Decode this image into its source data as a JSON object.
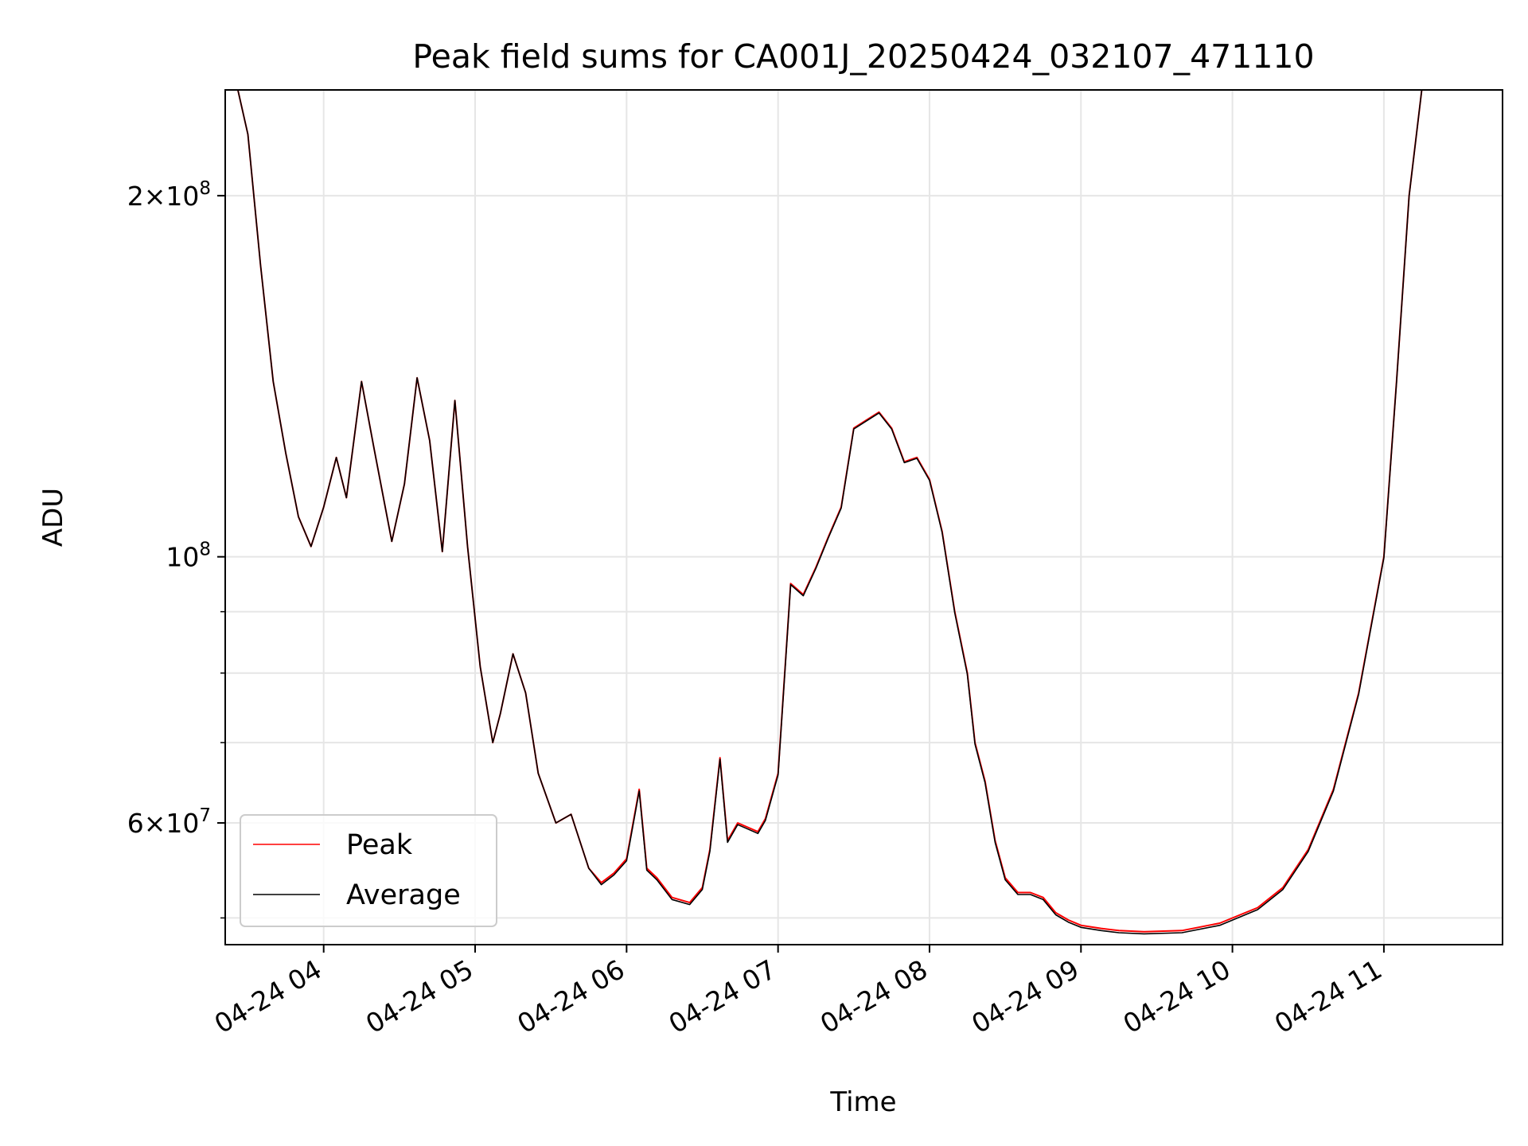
{
  "chart_data": {
    "type": "line",
    "title": "Peak field sums for CA001J_20250424_032107_471110",
    "xlabel": "Time",
    "ylabel": "ADU",
    "y_scale": "log",
    "grid": true,
    "legend": "lower-left",
    "xlim": [
      "2025-04-24 03:21",
      "2025-04-24 11:47"
    ],
    "ylim": [
      47500000,
      245000000
    ],
    "x_ticks": [
      "04-24 04",
      "04-24 05",
      "04-24 06",
      "04-24 07",
      "04-24 08",
      "04-24 09",
      "04-24 10",
      "04-24 11"
    ],
    "y_ticks_major": [
      {
        "value": 60000000,
        "mantissa": "6",
        "times": "×",
        "base": "10",
        "exp": "7"
      },
      {
        "value": 100000000,
        "mantissa": "",
        "times": "",
        "base": "10",
        "exp": "8"
      },
      {
        "value": 200000000,
        "mantissa": "2",
        "times": "×",
        "base": "10",
        "exp": "8"
      }
    ],
    "y_ticks_minor": [
      50000000,
      70000000,
      80000000,
      90000000
    ],
    "series": [
      {
        "name": "Peak",
        "color": "#ff0000",
        "x": [
          "03:26",
          "03:30",
          "03:35",
          "03:40",
          "03:45",
          "03:50",
          "03:55",
          "04:00",
          "04:05",
          "04:09",
          "04:15",
          "04:20",
          "04:27",
          "04:32",
          "04:37",
          "04:42",
          "04:47",
          "04:52",
          "04:57",
          "05:02",
          "05:07",
          "05:10",
          "05:15",
          "05:20",
          "05:25",
          "05:32",
          "05:38",
          "05:45",
          "05:50",
          "05:55",
          "06:00",
          "06:05",
          "06:08",
          "06:12",
          "06:18",
          "06:25",
          "06:30",
          "06:33",
          "06:37",
          "06:40",
          "06:44",
          "06:48",
          "06:52",
          "06:55",
          "07:00",
          "07:05",
          "07:10",
          "07:15",
          "07:20",
          "07:25",
          "07:30",
          "07:35",
          "07:40",
          "07:45",
          "07:50",
          "07:55",
          "08:00",
          "08:05",
          "08:10",
          "08:15",
          "08:18",
          "08:22",
          "08:26",
          "08:30",
          "08:35",
          "08:40",
          "08:45",
          "08:50",
          "08:55",
          "09:00",
          "09:08",
          "09:15",
          "09:25",
          "09:40",
          "09:55",
          "10:10",
          "10:20",
          "10:30",
          "10:40",
          "10:50",
          "11:00",
          "11:05",
          "11:10",
          "11:15",
          "11:20",
          "11:25",
          "11:30",
          "11:35",
          "11:40"
        ],
        "y": [
          245000000,
          225000000,
          175000000,
          140000000,
          122000000,
          108000000,
          102000000,
          110000000,
          121000000,
          112000000,
          140000000,
          123000000,
          103000000,
          115000000,
          141000000,
          125000000,
          101000000,
          135000000,
          102000000,
          81000000,
          70000000,
          74000000,
          83000000,
          77000000,
          66000000,
          60000000,
          61000000,
          55000000,
          53500000,
          54500000,
          56000000,
          64000000,
          55000000,
          54000000,
          52000000,
          51500000,
          53000000,
          57000000,
          68000000,
          58000000,
          60000000,
          59500000,
          59000000,
          60500000,
          66000000,
          95000000,
          93000000,
          98000000,
          104000000,
          110000000,
          128000000,
          130000000,
          132000000,
          128000000,
          120000000,
          121000000,
          116000000,
          105000000,
          90000000,
          80000000,
          70000000,
          65000000,
          58000000,
          54000000,
          52500000,
          52500000,
          52000000,
          50500000,
          49800000,
          49300000,
          49000000,
          48800000,
          48700000,
          48800000,
          49500000,
          51000000,
          53000000,
          57000000,
          64000000,
          77000000,
          100000000,
          140000000,
          200000000,
          245000000,
          245000000,
          245000000,
          245000000,
          245000000,
          245000000
        ]
      },
      {
        "name": "Average",
        "color": "#000000",
        "x": [
          "03:26",
          "03:30",
          "03:35",
          "03:40",
          "03:45",
          "03:50",
          "03:55",
          "04:00",
          "04:05",
          "04:09",
          "04:15",
          "04:20",
          "04:27",
          "04:32",
          "04:37",
          "04:42",
          "04:47",
          "04:52",
          "04:57",
          "05:02",
          "05:07",
          "05:10",
          "05:15",
          "05:20",
          "05:25",
          "05:32",
          "05:38",
          "05:45",
          "05:50",
          "05:55",
          "06:00",
          "06:05",
          "06:08",
          "06:12",
          "06:18",
          "06:25",
          "06:30",
          "06:33",
          "06:37",
          "06:40",
          "06:44",
          "06:48",
          "06:52",
          "06:55",
          "07:00",
          "07:05",
          "07:10",
          "07:15",
          "07:20",
          "07:25",
          "07:30",
          "07:35",
          "07:40",
          "07:45",
          "07:50",
          "07:55",
          "08:00",
          "08:05",
          "08:10",
          "08:15",
          "08:18",
          "08:22",
          "08:26",
          "08:30",
          "08:35",
          "08:40",
          "08:45",
          "08:50",
          "08:55",
          "09:00",
          "09:08",
          "09:15",
          "09:25",
          "09:40",
          "09:55",
          "10:10",
          "10:20",
          "10:30",
          "10:40",
          "10:50",
          "11:00",
          "11:05",
          "11:10",
          "11:15",
          "11:20",
          "11:25",
          "11:30",
          "11:35",
          "11:40"
        ],
        "y": [
          245000000,
          225000000,
          175000000,
          140000000,
          122000000,
          108000000,
          102000000,
          110000000,
          121000000,
          112000000,
          140000000,
          123000000,
          103000000,
          115000000,
          141000000,
          125000000,
          101000000,
          135000000,
          102000000,
          81000000,
          70000000,
          74000000,
          83000000,
          77000000,
          66000000,
          60000000,
          61000000,
          55000000,
          53300000,
          54300000,
          55800000,
          63800000,
          54800000,
          53800000,
          51800000,
          51300000,
          52800000,
          56800000,
          67800000,
          57800000,
          59800000,
          59300000,
          58800000,
          60300000,
          65800000,
          94800000,
          92800000,
          97800000,
          103800000,
          109800000,
          127800000,
          129800000,
          131800000,
          127800000,
          119800000,
          120800000,
          115800000,
          104800000,
          89800000,
          79800000,
          69800000,
          64800000,
          57800000,
          53800000,
          52300000,
          52300000,
          51800000,
          50300000,
          49600000,
          49100000,
          48800000,
          48600000,
          48500000,
          48600000,
          49300000,
          50800000,
          52800000,
          56800000,
          63800000,
          76800000,
          99800000,
          139800000,
          199800000,
          245000000,
          245000000,
          245000000,
          245000000,
          245000000,
          245000000
        ]
      }
    ]
  }
}
